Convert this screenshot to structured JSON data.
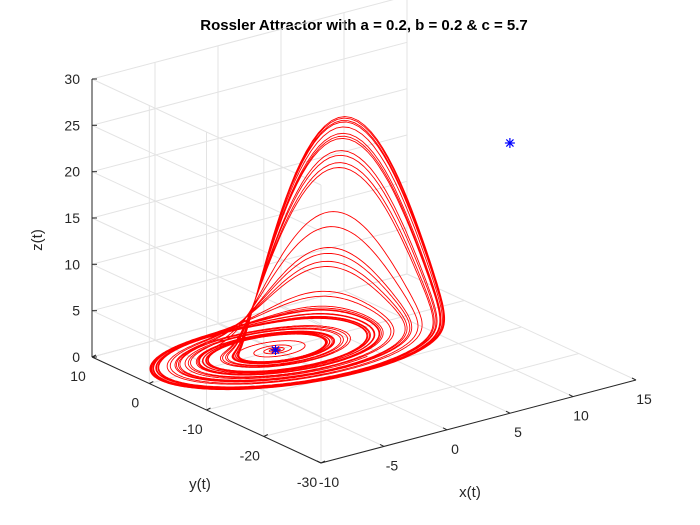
{
  "chart_data": {
    "type": "line3d",
    "title": "Rossler Attractor with a = 0.2, b = 0.2 & c = 5.7",
    "xlabel": "x(t)",
    "ylabel": "y(t)",
    "zlabel": "z(t)",
    "xlim": [
      -10,
      15
    ],
    "ylim": [
      -30,
      10
    ],
    "zlim": [
      0,
      30
    ],
    "xticks": [
      -10,
      -5,
      0,
      5,
      10,
      15
    ],
    "xtick_labels": [
      "-10",
      "-5",
      "0",
      "5",
      "10",
      "15"
    ],
    "yticks": [
      -30,
      -20,
      -10,
      0,
      10
    ],
    "ytick_labels": [
      "-30",
      "-20",
      "-10",
      "0",
      "10"
    ],
    "zticks": [
      0,
      5,
      10,
      15,
      20,
      25,
      30
    ],
    "ztick_labels": [
      "0",
      "5",
      "10",
      "15",
      "20",
      "25",
      "30"
    ],
    "grid": true,
    "view": "3d-box",
    "series": [
      {
        "kind": "trajectory",
        "system": "rossler",
        "params": {
          "a": 0.2,
          "b": 0.2,
          "c": 5.7
        },
        "color": "#ff0000",
        "initial_condition": [
          0,
          0,
          0
        ]
      }
    ],
    "markers": [
      {
        "symbol": "*",
        "color": "#0000ff",
        "x": 0.007,
        "y": -0.035,
        "z": 0.035
      },
      {
        "symbol": "*",
        "color": "#0000ff",
        "x": 5.69,
        "y": -28.47,
        "z": 28.47
      }
    ]
  }
}
